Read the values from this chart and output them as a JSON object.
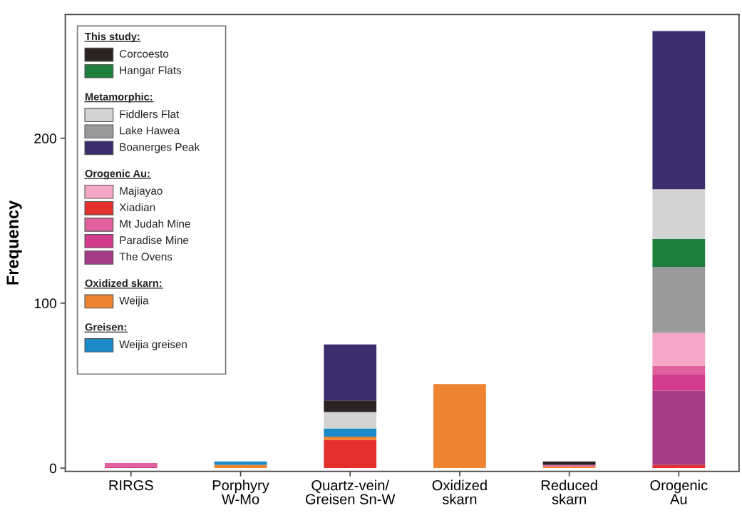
{
  "chart_data": {
    "type": "bar",
    "stacked": true,
    "ylabel": "Frequency",
    "categories": [
      "RIRGS",
      "Porphyry\nW-Mo",
      "Quartz-vein/\nGreisen Sn-W",
      "Oxidized\nskarn",
      "Reduced\nskarn",
      "Orogenic\nAu"
    ],
    "series": [
      {
        "name": "Xiadian",
        "color": "#e3302c",
        "values": [
          0,
          0,
          17,
          0,
          0,
          2
        ]
      },
      {
        "name": "Weijia",
        "color": "#ee8330",
        "values": [
          0,
          2,
          2,
          51,
          1,
          0
        ]
      },
      {
        "name": "Weijia greisen",
        "color": "#1a8ac8",
        "values": [
          0,
          2,
          5,
          0,
          0,
          0
        ]
      },
      {
        "name": "The Ovens",
        "color": "#a63b87",
        "values": [
          0,
          0,
          0,
          0,
          0,
          45
        ]
      },
      {
        "name": "Paradise Mine",
        "color": "#d13c8c",
        "values": [
          1,
          0,
          0,
          0,
          0,
          10
        ]
      },
      {
        "name": "Mt Judah Mine",
        "color": "#e0609e",
        "values": [
          2,
          0,
          0,
          0,
          1,
          5
        ]
      },
      {
        "name": "Majiayao",
        "color": "#f4a7c6",
        "values": [
          0,
          0,
          0,
          0,
          0,
          20
        ]
      },
      {
        "name": "Lake Hawea",
        "color": "#9a9a9a",
        "values": [
          0,
          0,
          0,
          0,
          0,
          40
        ]
      },
      {
        "name": "Hangar Flats",
        "color": "#1e7e3c",
        "values": [
          0,
          0,
          0,
          0,
          0,
          17
        ]
      },
      {
        "name": "Fiddlers Flat",
        "color": "#d4d3d4",
        "values": [
          0,
          0,
          10,
          0,
          0,
          30
        ]
      },
      {
        "name": "Corcoesto",
        "color": "#2b2222",
        "values": [
          0,
          0,
          7,
          0,
          2,
          0
        ]
      },
      {
        "name": "Boanerges Peak",
        "color": "#3b2d6e",
        "values": [
          0,
          0,
          34,
          0,
          0,
          96
        ]
      }
    ],
    "annotations": [
      "This study:",
      "Metamorphic:",
      "Orogenic Au:",
      "Oxidized skarn:",
      "Greisen:"
    ],
    "legend": "top left",
    "ylim": [
      -2,
      275
    ],
    "yticks": [
      0,
      100,
      200
    ],
    "grid": false
  }
}
